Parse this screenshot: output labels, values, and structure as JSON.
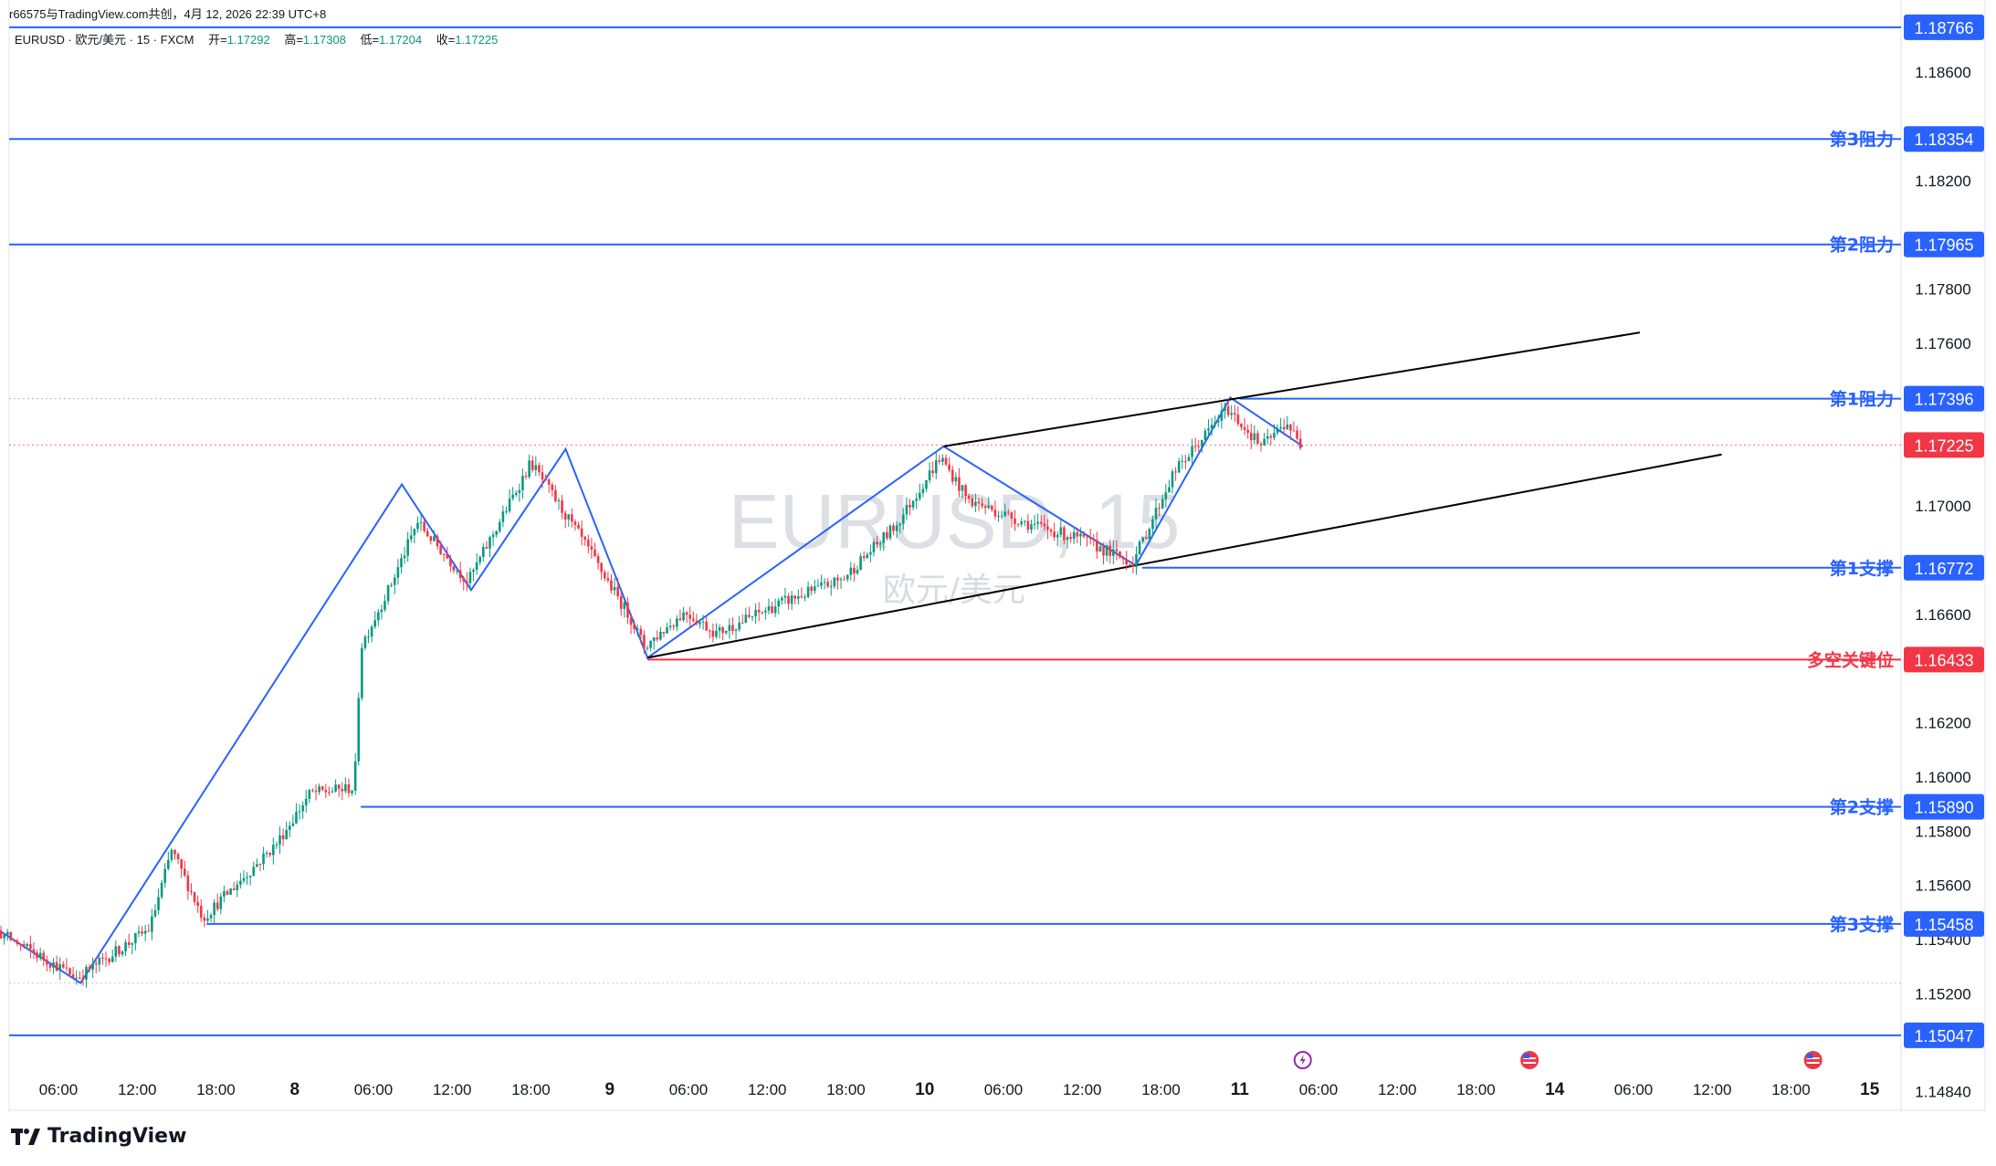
{
  "header": {
    "top_text": "r66575与TradingView.com共创，4月 12, 2026 22:39 UTC+8",
    "symbol_line": "EURUSD · 欧元/美元 · 15 · FXCM",
    "open_label": "开=",
    "open_value": "1.17292",
    "high_label": "高=",
    "high_value": "1.17308",
    "low_label": "低=",
    "low_value": "1.17204",
    "close_label": "收=",
    "close_value": "1.17225"
  },
  "watermark": {
    "symbol": "EURUSD, 15",
    "description": "欧元/美元"
  },
  "colors": {
    "blue_line": "#2962ff",
    "red_line": "#f23645",
    "up_candle": "#089981",
    "down_candle": "#f23645",
    "text": "#131722"
  },
  "branding": {
    "logo_text": "TradingView"
  },
  "chart_data": {
    "type": "candlestick",
    "symbol": "EURUSD",
    "interval": "15",
    "ylim": [
      1.1475,
      1.1885
    ],
    "y_ticks": [
      "1.18600",
      "1.18200",
      "1.17800",
      "1.17600",
      "1.17000",
      "1.16600",
      "1.16200",
      "1.16000",
      "1.15800",
      "1.15600",
      "1.15400",
      "1.15200",
      "1.14840"
    ],
    "y_tick_values": [
      1.186,
      1.182,
      1.178,
      1.176,
      1.17,
      1.166,
      1.162,
      1.16,
      1.158,
      1.156,
      1.154,
      1.152,
      1.1484
    ],
    "x_ticks": [
      {
        "label": "06:00",
        "t": 0.25,
        "bold": false
      },
      {
        "label": "12:00",
        "t": 0.5,
        "bold": false
      },
      {
        "label": "18:00",
        "t": 0.75,
        "bold": false
      },
      {
        "label": "8",
        "t": 1.0,
        "bold": true
      },
      {
        "label": "06:00",
        "t": 1.25,
        "bold": false
      },
      {
        "label": "12:00",
        "t": 1.5,
        "bold": false
      },
      {
        "label": "18:00",
        "t": 1.75,
        "bold": false
      },
      {
        "label": "9",
        "t": 2.0,
        "bold": true
      },
      {
        "label": "06:00",
        "t": 2.25,
        "bold": false
      },
      {
        "label": "12:00",
        "t": 2.5,
        "bold": false
      },
      {
        "label": "18:00",
        "t": 2.75,
        "bold": false
      },
      {
        "label": "10",
        "t": 3.0,
        "bold": true
      },
      {
        "label": "06:00",
        "t": 3.25,
        "bold": false
      },
      {
        "label": "12:00",
        "t": 3.5,
        "bold": false
      },
      {
        "label": "18:00",
        "t": 3.75,
        "bold": false
      },
      {
        "label": "11",
        "t": 4.0,
        "bold": true
      },
      {
        "label": "06:00",
        "t": 4.25,
        "bold": false
      },
      {
        "label": "12:00",
        "t": 4.5,
        "bold": false
      },
      {
        "label": "18:00",
        "t": 4.75,
        "bold": false
      },
      {
        "label": "14",
        "t": 5.0,
        "bold": true
      },
      {
        "label": "06:00",
        "t": 5.25,
        "bold": false
      },
      {
        "label": "12:00",
        "t": 5.5,
        "bold": false
      },
      {
        "label": "18:00",
        "t": 5.75,
        "bold": false
      },
      {
        "label": "15",
        "t": 6.0,
        "bold": true
      }
    ],
    "levels": [
      {
        "name": "",
        "value": 1.18766,
        "price_label": "1.18766",
        "color": "#2962ff"
      },
      {
        "name": "第3阻力",
        "value": 1.18354,
        "price_label": "1.18354",
        "color": "#2962ff"
      },
      {
        "name": "第2阻力",
        "value": 1.17965,
        "price_label": "1.17965",
        "color": "#2962ff"
      },
      {
        "name": "第1阻力",
        "value": 1.17396,
        "price_label": "1.17396",
        "color": "#2962ff"
      },
      {
        "name": "第1支撑",
        "value": 1.16772,
        "price_label": "1.16772",
        "color": "#2962ff"
      },
      {
        "name": "多空关键位",
        "value": 1.16433,
        "price_label": "1.16433",
        "color": "#f23645"
      },
      {
        "name": "第2支撑",
        "value": 1.1589,
        "price_label": "1.15890",
        "color": "#2962ff"
      },
      {
        "name": "第3支撑",
        "value": 1.15458,
        "price_label": "1.15458",
        "color": "#2962ff"
      },
      {
        "name": "",
        "value": 1.15047,
        "price_label": "1.15047",
        "color": "#2962ff"
      }
    ],
    "current_price": {
      "value": 1.17225,
      "label": "1.17225"
    },
    "zigzag": [
      {
        "t": -0.12,
        "p": 1.1557
      },
      {
        "t": 0.32,
        "p": 1.1524
      },
      {
        "t": 1.34,
        "p": 1.1708
      },
      {
        "t": 1.56,
        "p": 1.1669
      },
      {
        "t": 1.86,
        "p": 1.1721
      },
      {
        "t": 2.12,
        "p": 1.1644
      },
      {
        "t": 3.06,
        "p": 1.1722
      },
      {
        "t": 3.67,
        "p": 1.1678
      },
      {
        "t": 3.97,
        "p": 1.174
      },
      {
        "t": 4.2,
        "p": 1.1722
      }
    ],
    "channel": {
      "upper": [
        {
          "t": 3.06,
          "p": 1.1722
        },
        {
          "t": 5.27,
          "p": 1.1764
        }
      ],
      "lower": [
        {
          "t": 2.12,
          "p": 1.1644
        },
        {
          "t": 5.53,
          "p": 1.1719
        }
      ]
    },
    "candle_path": [
      {
        "t": -0.12,
        "p": 1.1557
      },
      {
        "t": 0.05,
        "p": 1.1544
      },
      {
        "t": 0.32,
        "p": 1.1526
      },
      {
        "t": 0.55,
        "p": 1.1544
      },
      {
        "t": 0.62,
        "p": 1.1573
      },
      {
        "t": 0.72,
        "p": 1.1548
      },
      {
        "t": 0.95,
        "p": 1.1575
      },
      {
        "t": 1.06,
        "p": 1.1594
      },
      {
        "t": 1.2,
        "p": 1.1596
      },
      {
        "t": 1.22,
        "p": 1.1648
      },
      {
        "t": 1.32,
        "p": 1.1672
      },
      {
        "t": 1.4,
        "p": 1.1694
      },
      {
        "t": 1.56,
        "p": 1.1672
      },
      {
        "t": 1.76,
        "p": 1.1716
      },
      {
        "t": 1.92,
        "p": 1.1688
      },
      {
        "t": 2.08,
        "p": 1.1658
      },
      {
        "t": 2.12,
        "p": 1.1648
      },
      {
        "t": 2.25,
        "p": 1.1661
      },
      {
        "t": 2.35,
        "p": 1.1653
      },
      {
        "t": 2.55,
        "p": 1.1664
      },
      {
        "t": 2.75,
        "p": 1.1673
      },
      {
        "t": 2.92,
        "p": 1.1693
      },
      {
        "t": 3.06,
        "p": 1.1718
      },
      {
        "t": 3.15,
        "p": 1.1702
      },
      {
        "t": 3.35,
        "p": 1.1693
      },
      {
        "t": 3.5,
        "p": 1.1688
      },
      {
        "t": 3.67,
        "p": 1.1679
      },
      {
        "t": 3.8,
        "p": 1.1712
      },
      {
        "t": 3.97,
        "p": 1.1736
      },
      {
        "t": 4.08,
        "p": 1.1722
      },
      {
        "t": 4.16,
        "p": 1.1731
      },
      {
        "t": 4.2,
        "p": 1.17225
      }
    ],
    "event_icons": [
      {
        "name": "lightning",
        "t": 4.2
      },
      {
        "name": "us-flag",
        "t": 4.92
      },
      {
        "name": "us-flag",
        "t": 5.82
      }
    ]
  }
}
